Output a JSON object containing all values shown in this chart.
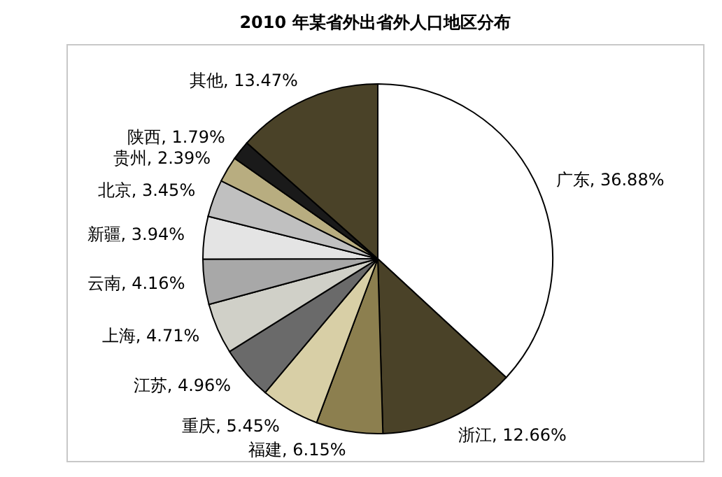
{
  "chart_data": {
    "type": "pie",
    "title": "2010 年某省外出省外人口地区分布",
    "categories": [
      "广东",
      "浙江",
      "福建",
      "重庆",
      "江苏",
      "上海",
      "云南",
      "新疆",
      "北京",
      "贵州",
      "陕西",
      "其他"
    ],
    "values": [
      36.88,
      12.66,
      6.15,
      5.45,
      4.96,
      4.71,
      4.16,
      3.94,
      3.45,
      2.39,
      1.79,
      13.47
    ],
    "value_labels": [
      "36.88%",
      "12.66%",
      "6.15%",
      "5.45%",
      "4.96%",
      "4.71%",
      "4.16%",
      "3.94%",
      "3.45%",
      "2.39%",
      "1.79%",
      "13.47%"
    ],
    "colors": [
      "#ffffff",
      "#4a4228",
      "#8c7f4f",
      "#d8cfa6",
      "#6a6a6a",
      "#d0d0c8",
      "#a8a8a8",
      "#e4e4e4",
      "#c0c0c0",
      "#b8ad80",
      "#1a1a1a",
      "#4a4228"
    ]
  }
}
